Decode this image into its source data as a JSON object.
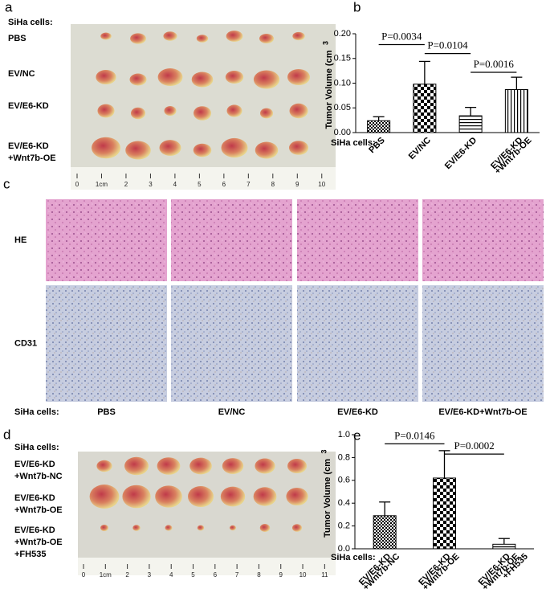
{
  "panel_a": {
    "label": "a",
    "heading": "SiHa cells:",
    "rows": [
      [
        "PBS"
      ],
      [
        "EV/NC"
      ],
      [
        "EV/E6-KD"
      ],
      [
        "EV/E6-KD",
        "+Wnt7b-OE"
      ]
    ],
    "ruler": [
      "0",
      "1cm",
      "2",
      "3",
      "4",
      "5",
      "6",
      "7",
      "8",
      "9",
      "10"
    ]
  },
  "panel_c": {
    "label": "c",
    "rows": [
      "HE",
      "CD31"
    ],
    "heading": "SiHa cells:",
    "columns": [
      "PBS",
      "EV/NC",
      "EV/E6-KD",
      "EV/E6-KD+Wnt7b-OE"
    ]
  },
  "panel_d": {
    "label": "d",
    "heading": "SiHa cells:",
    "rows": [
      [
        "EV/E6-KD",
        "+Wnt7b-NC"
      ],
      [
        "EV/E6-KD",
        "+Wnt7b-OE"
      ],
      [
        "EV/E6-KD",
        "+Wnt7b-OE",
        "+FH535"
      ]
    ],
    "ruler": [
      "0",
      "1cm",
      "2",
      "3",
      "4",
      "5",
      "6",
      "7",
      "8",
      "9",
      "10",
      "11"
    ]
  },
  "chart_data": [
    {
      "type": "bar",
      "panel_label": "b",
      "y_label": "Tumor Volume (cm",
      "y_label_superscript": "3",
      "x_label": "SiHa cells:",
      "categories": [
        [
          "PBS"
        ],
        [
          "EV/NC"
        ],
        [
          "EV/E6-KD"
        ],
        [
          "EV/E6-KD",
          "+Wnt7b-OE"
        ]
      ],
      "values": [
        0.024,
        0.098,
        0.034,
        0.087
      ],
      "errors": [
        0.008,
        0.046,
        0.017,
        0.025
      ],
      "patterns": [
        "checker-small",
        "checker",
        "horizontal",
        "vertical"
      ],
      "color": "#000000",
      "ylim": [
        0,
        0.2
      ],
      "yticks": [
        {
          "value": 0,
          "label": "0.00"
        },
        {
          "value": 0.05,
          "label": "0.05"
        },
        {
          "value": 0.1,
          "label": "0.10"
        },
        {
          "value": 0.15,
          "label": "0.15"
        },
        {
          "value": 0.2,
          "label": "0.20"
        }
      ],
      "annotations": [
        {
          "text": "P=0.0034",
          "from_index": 0,
          "to_index": 1,
          "y": 0.178
        },
        {
          "text": "P=0.0104",
          "from_index": 1,
          "to_index": 2,
          "y": 0.16
        },
        {
          "text": "P=0.0016",
          "from_index": 2,
          "to_index": 3,
          "y": 0.122
        }
      ]
    },
    {
      "type": "bar",
      "panel_label": "e",
      "y_label": "Tumor Volume (cm",
      "y_label_superscript": "3",
      "x_label": "SiHa cells:",
      "categories": [
        [
          "EV/E6-KD",
          "+Wnt7b-NC"
        ],
        [
          "EV/E6-KD",
          "+Wnt7b-OE"
        ],
        [
          "EV/E6-KD",
          "+Wnt7b-OE",
          "+FH535"
        ]
      ],
      "values": [
        0.29,
        0.62,
        0.04
      ],
      "errors": [
        0.12,
        0.24,
        0.05
      ],
      "patterns": [
        "checker-small",
        "checker",
        "horizontal"
      ],
      "color": "#000000",
      "ylim": [
        0,
        1
      ],
      "yticks": [
        {
          "value": 0,
          "label": "0.0"
        },
        {
          "value": 0.2,
          "label": "0.2"
        },
        {
          "value": 0.4,
          "label": "0.4"
        },
        {
          "value": 0.6,
          "label": "0.6"
        },
        {
          "value": 0.8,
          "label": "0.8"
        },
        {
          "value": 1,
          "label": "1.0"
        }
      ],
      "annotations": [
        {
          "text": "P=0.0146",
          "from_index": 0,
          "to_index": 1,
          "y": 0.92
        },
        {
          "text": "P=0.0002",
          "from_index": 1,
          "to_index": 2,
          "y": 0.83
        }
      ]
    }
  ]
}
